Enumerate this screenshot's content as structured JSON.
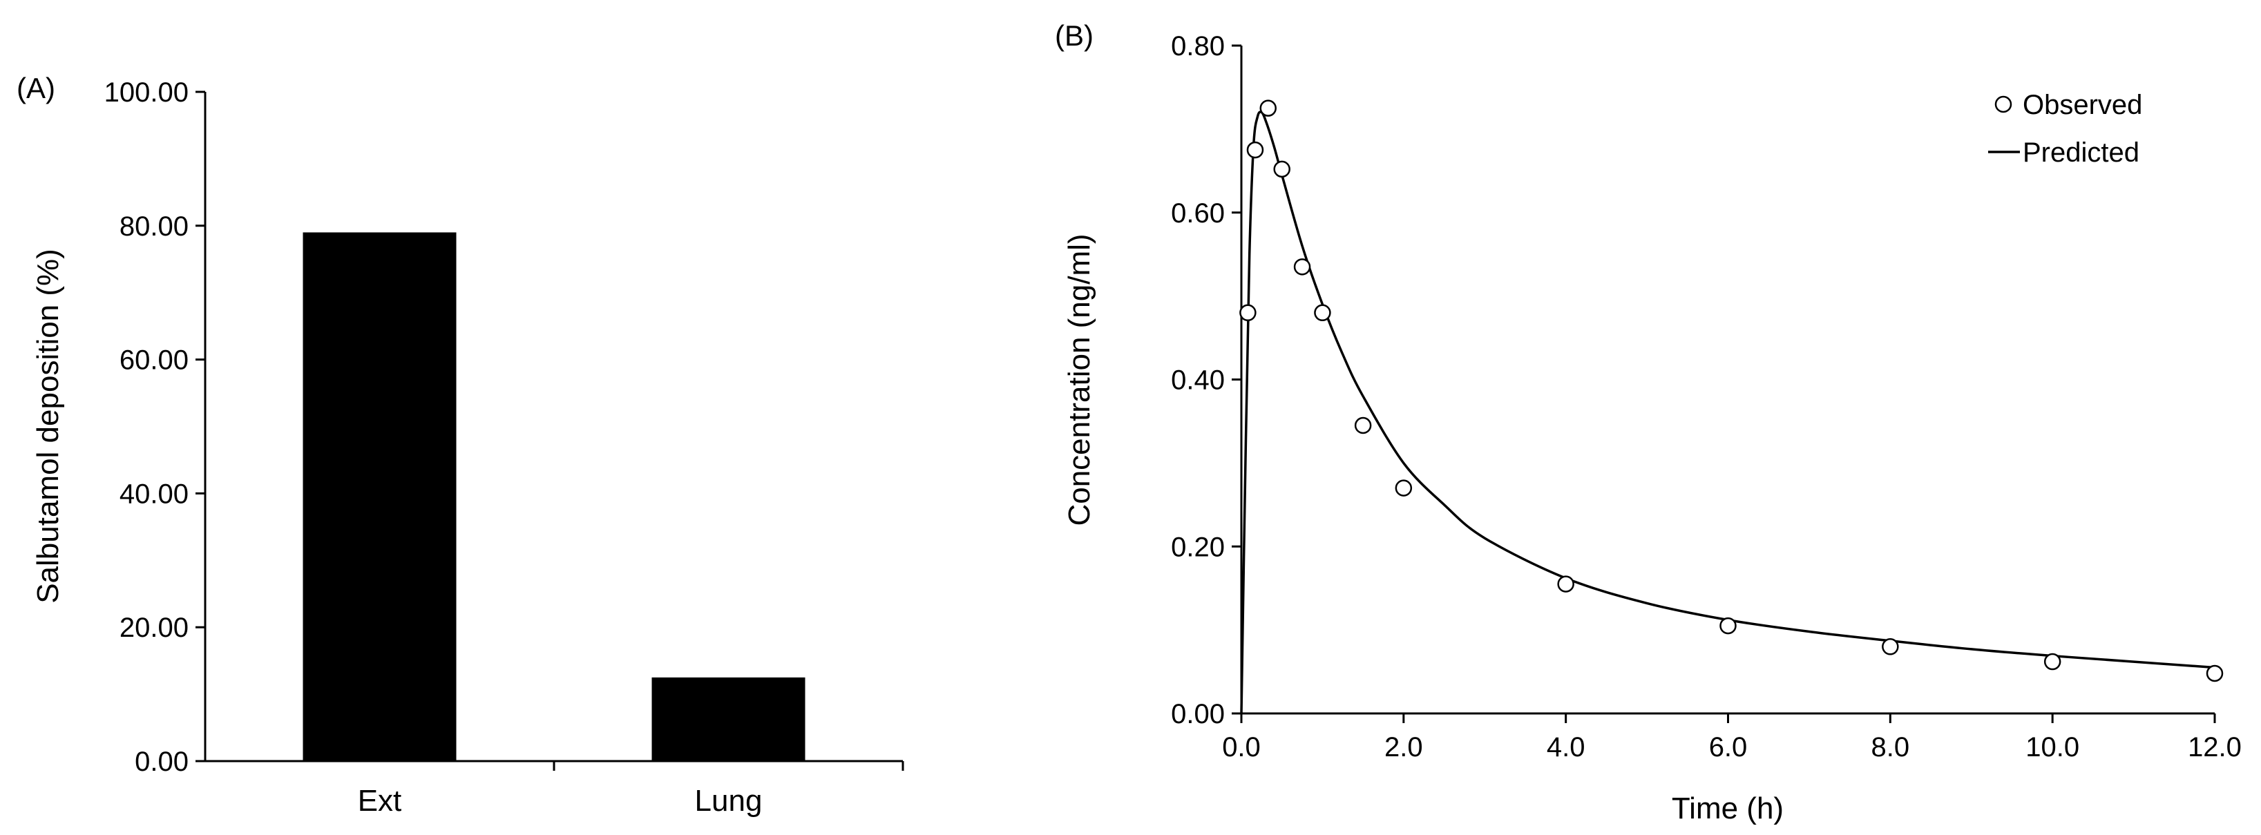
{
  "chart_data": [
    {
      "panel": "(A)",
      "type": "bar",
      "title": "",
      "xlabel": "",
      "ylabel": "Salbutamol deposition (%)",
      "categories": [
        "Ext",
        "Lung"
      ],
      "values": [
        79.0,
        12.5
      ],
      "ylim": [
        0,
        100
      ],
      "yticks": [
        "0.00",
        "20.00",
        "40.00",
        "60.00",
        "80.00",
        "100.00"
      ],
      "bar_color": "#000000",
      "grid": false
    },
    {
      "panel": "(B)",
      "type": "line",
      "title": "",
      "xlabel": "Time (h)",
      "ylabel": "Concentration (ng/ml)",
      "xlim": [
        0,
        12
      ],
      "ylim": [
        0,
        0.8
      ],
      "xticks": [
        "0.0",
        "2.0",
        "4.0",
        "6.0",
        "8.0",
        "10.0",
        "12.0"
      ],
      "yticks": [
        "0.00",
        "0.20",
        "0.40",
        "0.60",
        "0.80"
      ],
      "grid": false,
      "legend_position": "top-right",
      "series": [
        {
          "name": "Observed",
          "style": "open-circle",
          "x": [
            0.08,
            0.17,
            0.33,
            0.5,
            0.75,
            1.0,
            1.5,
            2.0,
            4.0,
            6.0,
            8.0,
            10.0,
            12.0
          ],
          "y": [
            0.48,
            0.675,
            0.725,
            0.652,
            0.535,
            0.48,
            0.345,
            0.27,
            0.155,
            0.105,
            0.08,
            0.062,
            0.048
          ]
        },
        {
          "name": "Predicted",
          "style": "line",
          "x": [
            0.0,
            0.05,
            0.1,
            0.15,
            0.2,
            0.25,
            0.3,
            0.4,
            0.5,
            0.75,
            1.0,
            1.25,
            1.5,
            2.0,
            2.5,
            3.0,
            4.0,
            5.0,
            6.0,
            7.0,
            8.0,
            9.0,
            10.0,
            11.0,
            12.0
          ],
          "y": [
            0.0,
            0.3,
            0.55,
            0.68,
            0.715,
            0.72,
            0.71,
            0.68,
            0.645,
            0.56,
            0.49,
            0.43,
            0.38,
            0.3,
            0.25,
            0.21,
            0.162,
            0.132,
            0.112,
            0.098,
            0.087,
            0.077,
            0.069,
            0.062,
            0.055
          ]
        }
      ]
    }
  ]
}
